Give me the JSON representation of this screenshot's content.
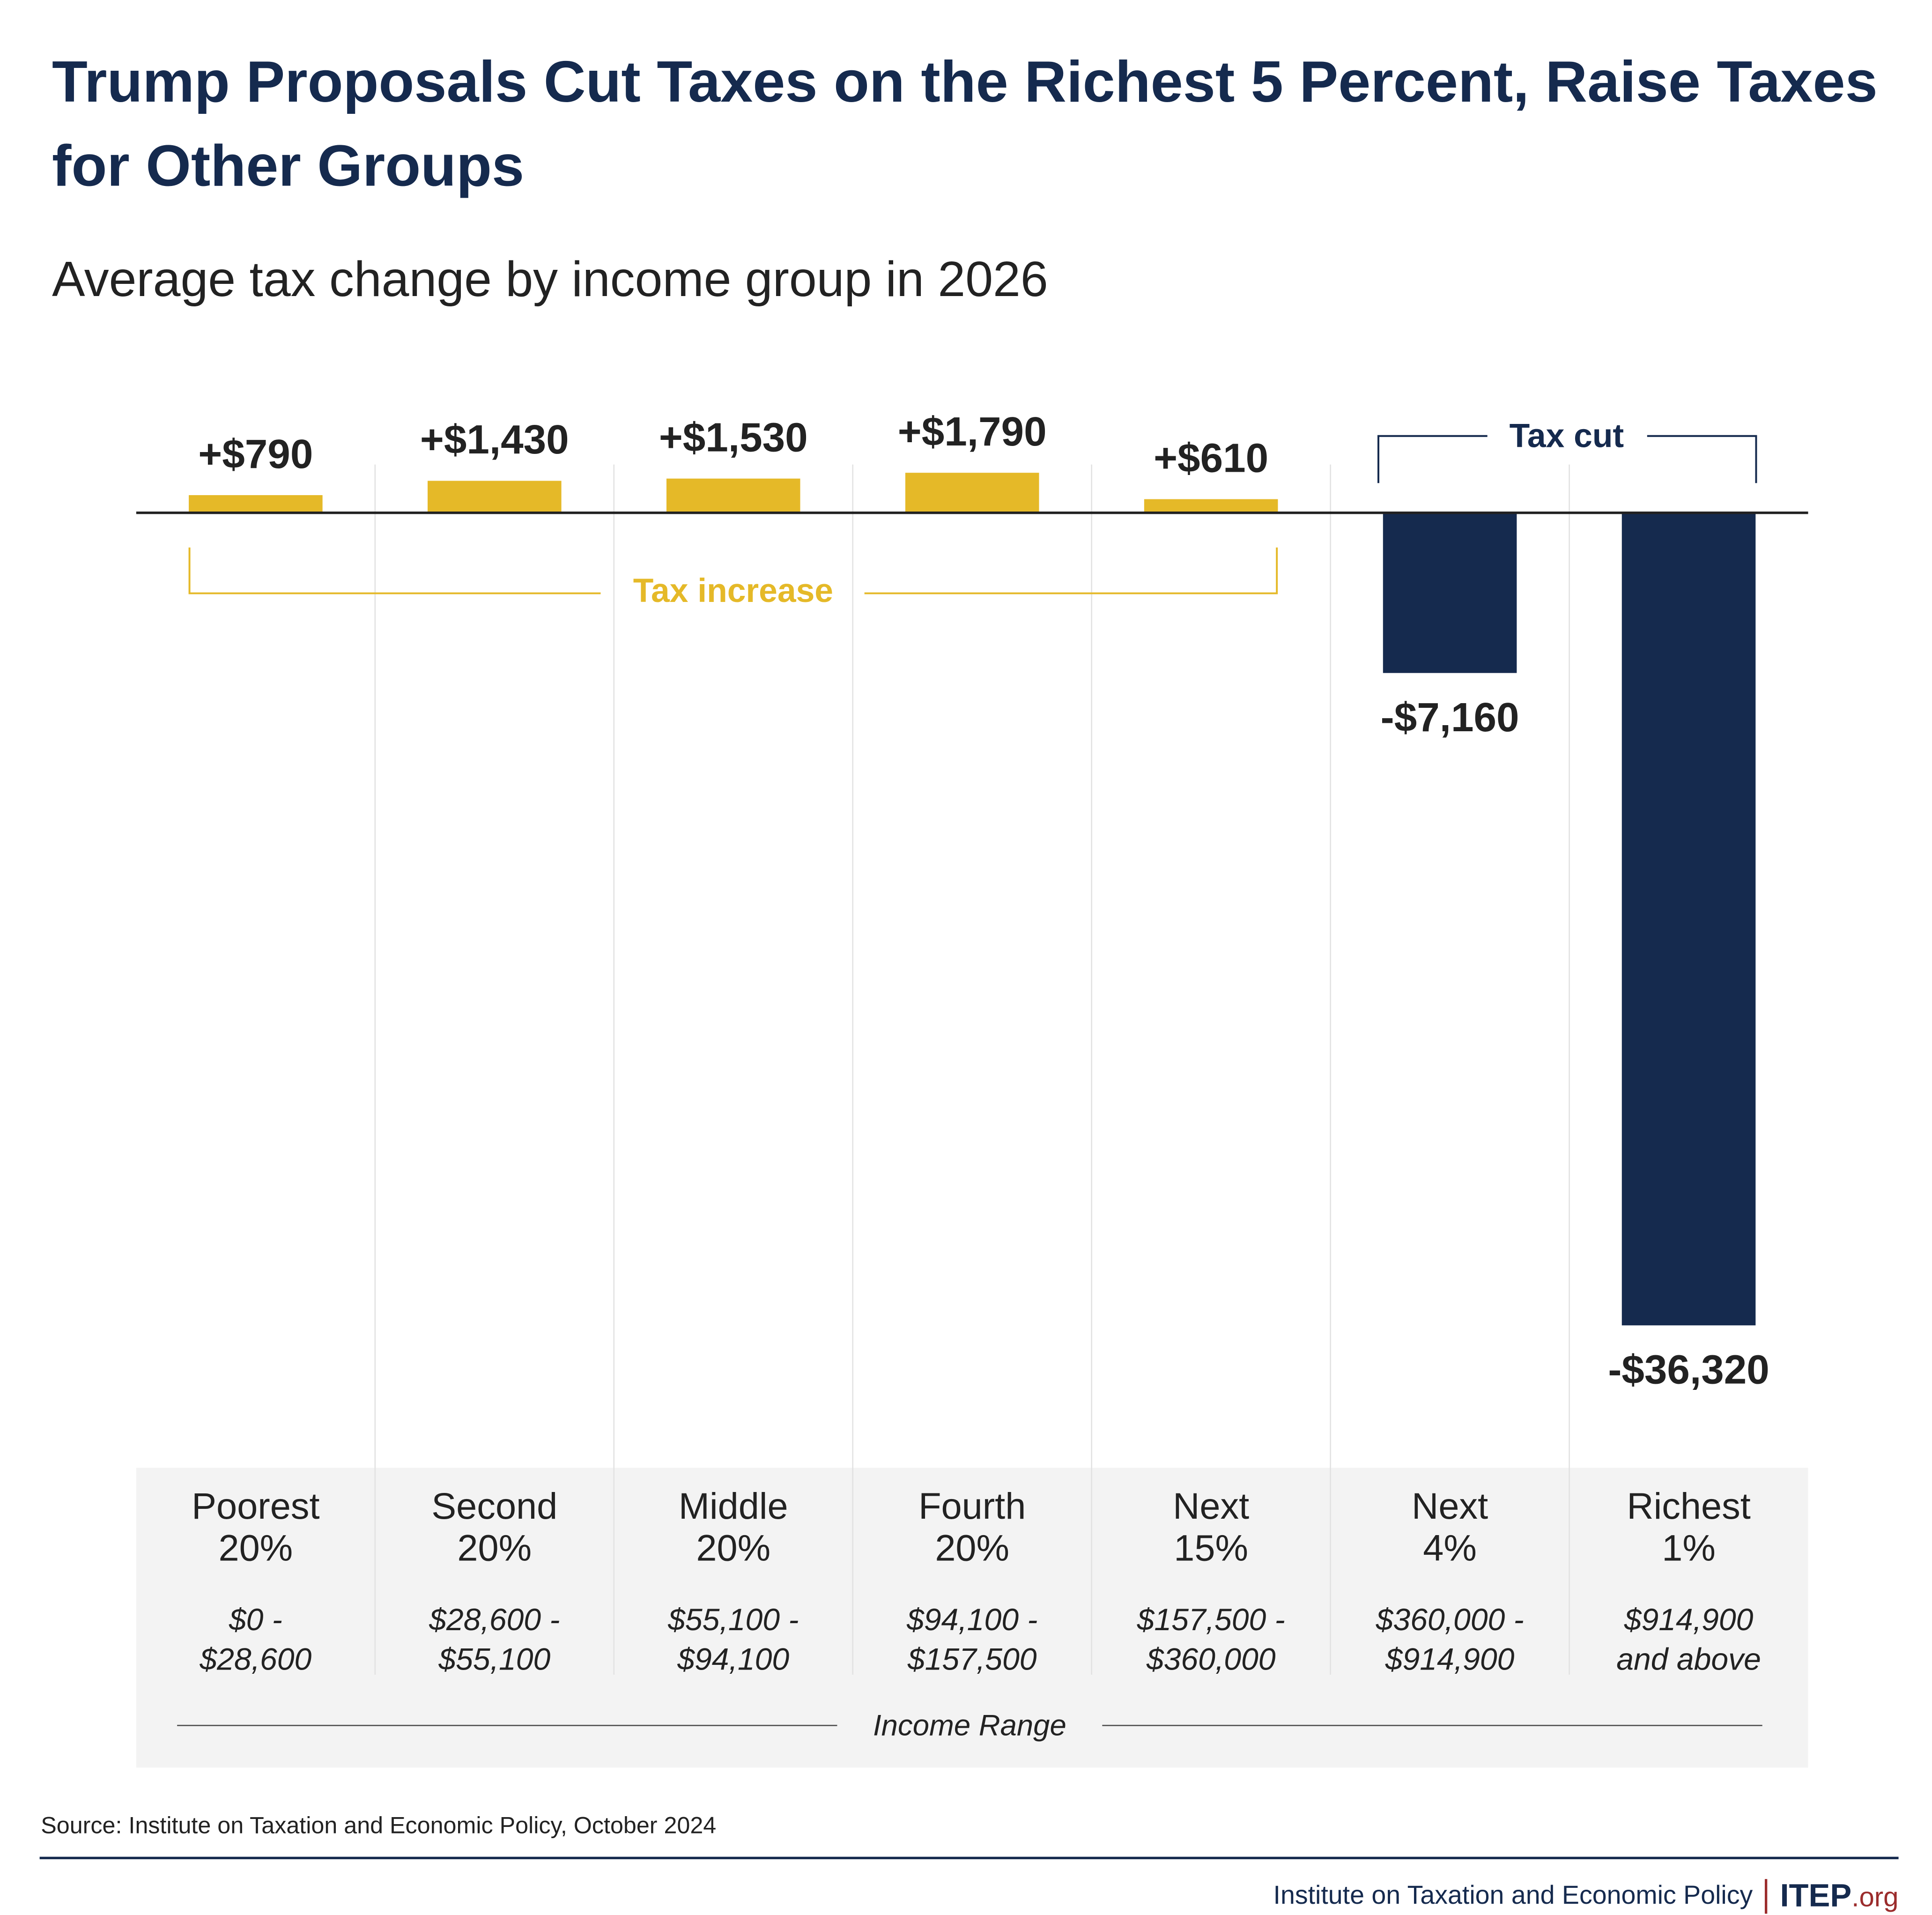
{
  "title": "Trump Proposals Cut Taxes on the Richest 5 Percent, Raise Taxes for Other Groups",
  "subtitle": "Average tax change by income group in 2026",
  "chart_data": {
    "type": "bar",
    "categories": [
      "Poorest 20%",
      "Second 20%",
      "Middle 20%",
      "Fourth 20%",
      "Next 15%",
      "Next 4%",
      "Richest 1%"
    ],
    "category_lines": [
      [
        "Poorest",
        "20%"
      ],
      [
        "Second",
        "20%"
      ],
      [
        "Middle",
        "20%"
      ],
      [
        "Fourth",
        "20%"
      ],
      [
        "Next",
        "15%"
      ],
      [
        "Next",
        "4%"
      ],
      [
        "Richest",
        "1%"
      ]
    ],
    "income_ranges": [
      [
        "$0 -",
        "$28,600"
      ],
      [
        "$28,600 -",
        "$55,100"
      ],
      [
        "$55,100 -",
        "$94,100"
      ],
      [
        "$94,100 -",
        "$157,500"
      ],
      [
        "$157,500 -",
        "$360,000"
      ],
      [
        "$360,000 -",
        "$914,900"
      ],
      [
        "$914,900",
        "and above"
      ]
    ],
    "values": [
      790,
      1430,
      1530,
      1790,
      610,
      -7160,
      -36320
    ],
    "data_labels": [
      "+$790",
      "+$1,430",
      "+$1,530",
      "+$1,790",
      "+$610",
      "-$7,160",
      "-$36,320"
    ],
    "xlabel": "Income Range",
    "annotations": {
      "increase": "Tax increase",
      "cut": "Tax cut"
    },
    "colors": {
      "increase": "#e5b928",
      "cut": "#152a4e",
      "panel": "#f3f3f3"
    },
    "grid": false
  },
  "source": "Source: Institute on Taxation and Economic Policy, October 2024",
  "footer": {
    "org": "Institute on Taxation and Economic Policy",
    "logo": "ITEP",
    "logo_suffix": ".org"
  }
}
